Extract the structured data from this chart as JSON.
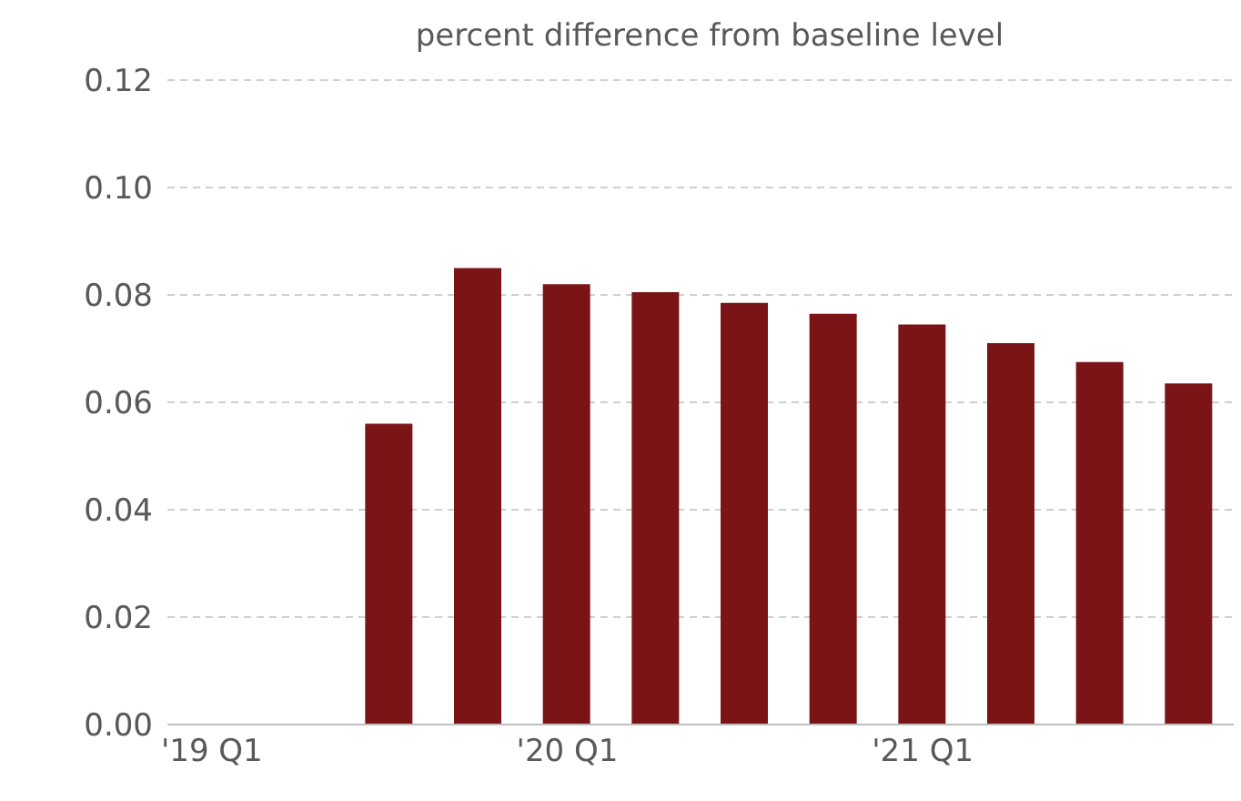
{
  "chart_data": {
    "type": "bar",
    "title": "percent difference from baseline level",
    "categories": [
      "'19 Q1",
      null,
      null,
      null,
      "'20 Q1",
      null,
      null,
      null,
      "'21 Q1",
      null,
      null,
      null
    ],
    "values": [
      null,
      null,
      0.056,
      0.085,
      0.082,
      0.0805,
      0.0785,
      0.0765,
      0.0745,
      0.071,
      0.0675,
      0.0635
    ],
    "color": "#7b1416",
    "ylim": [
      0,
      0.12
    ],
    "yticks": [
      {
        "value": 0,
        "label": "0.00"
      },
      {
        "value": 0.02,
        "label": "0.02"
      },
      {
        "value": 0.04,
        "label": "0.04"
      },
      {
        "value": 0.06,
        "label": "0.06"
      },
      {
        "value": 0.08,
        "label": "0.08"
      },
      {
        "value": 0.1,
        "label": "0.10"
      },
      {
        "value": 0.12,
        "label": "0.12"
      }
    ],
    "grid": "y"
  }
}
